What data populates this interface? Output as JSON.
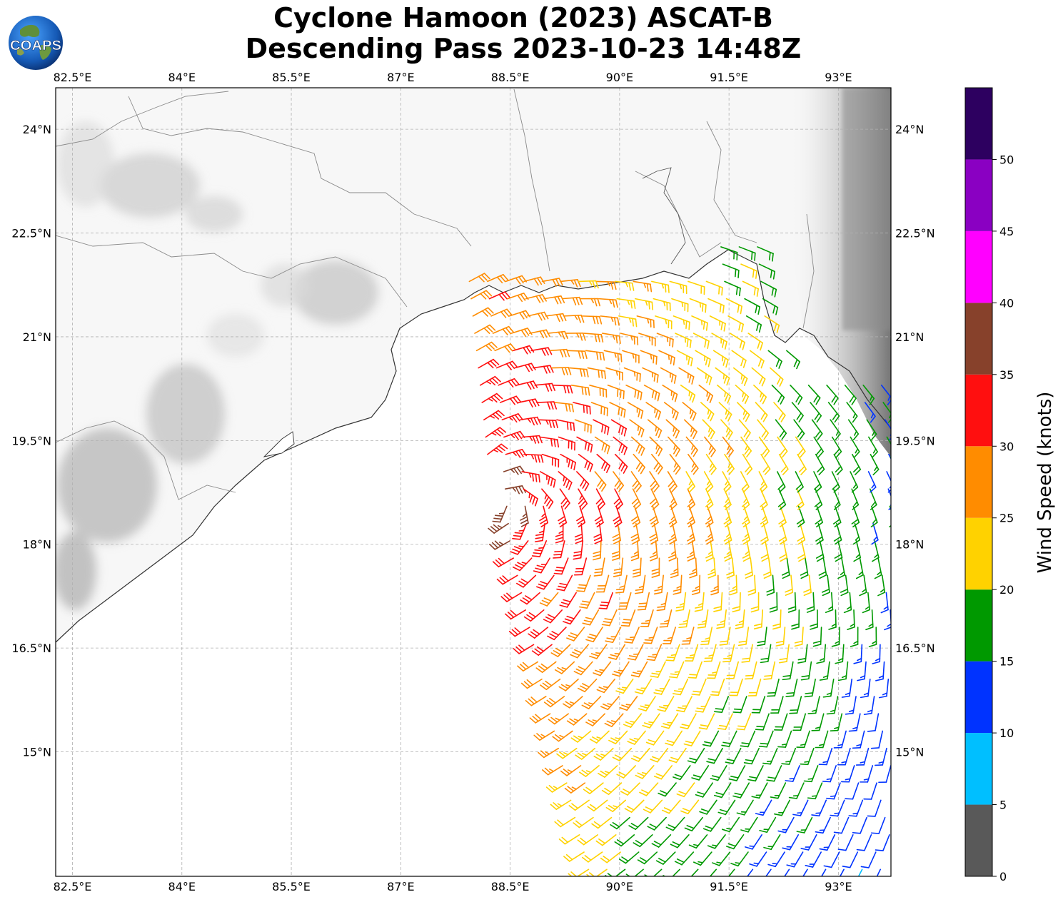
{
  "title": {
    "line1": "Cyclone Hamoon (2023) ASCAT-B",
    "line2": "Descending Pass 2023-10-23 14:48Z"
  },
  "logo": {
    "text": "COAPS",
    "icon": "globe-icon"
  },
  "map": {
    "lon_range": [
      82.27,
      93.72
    ],
    "lat_range": [
      13.2,
      24.6
    ],
    "lon_ticks": [
      "82.5°E",
      "84°E",
      "85.5°E",
      "87°E",
      "88.5°E",
      "90°E",
      "91.5°E",
      "93°E"
    ],
    "lon_tick_values": [
      82.5,
      84,
      85.5,
      87,
      88.5,
      90,
      91.5,
      93
    ],
    "lat_ticks": [
      "24°N",
      "22.5°N",
      "21°N",
      "19.5°N",
      "18°N",
      "16.5°N",
      "15°N"
    ],
    "lat_tick_values": [
      24,
      22.5,
      21,
      19.5,
      18,
      16.5,
      15
    ],
    "gridlines": true,
    "ocean_color": "#ffffff",
    "land_shading": "grayscale-topography"
  },
  "colorbar": {
    "label": "Wind Speed (knots)",
    "ticks": [
      "0",
      "5",
      "10",
      "15",
      "20",
      "25",
      "30",
      "35",
      "40",
      "45",
      "50"
    ],
    "tick_values": [
      0,
      5,
      10,
      15,
      20,
      25,
      30,
      35,
      40,
      45,
      50
    ],
    "bins": [
      {
        "min": 0,
        "max": 5,
        "color": "#595959"
      },
      {
        "min": 5,
        "max": 10,
        "color": "#00bfff"
      },
      {
        "min": 10,
        "max": 15,
        "color": "#0033ff"
      },
      {
        "min": 15,
        "max": 20,
        "color": "#009900"
      },
      {
        "min": 20,
        "max": 25,
        "color": "#ffd200"
      },
      {
        "min": 25,
        "max": 30,
        "color": "#ff8c00"
      },
      {
        "min": 30,
        "max": 35,
        "color": "#ff0f0f"
      },
      {
        "min": 35,
        "max": 40,
        "color": "#87412b"
      },
      {
        "min": 40,
        "max": 45,
        "color": "#ff00ff"
      },
      {
        "min": 45,
        "max": 50,
        "color": "#8a00c2"
      },
      {
        "min": 50,
        "max": 55,
        "color": "#2d0060"
      }
    ]
  },
  "wind_field": {
    "instrument": "ASCAT-B",
    "swath_west_edge": [
      [
        88.4,
        19.2
      ],
      [
        88.5,
        18.0
      ],
      [
        88.9,
        16.2
      ],
      [
        89.4,
        14.0
      ],
      [
        89.6,
        13.2
      ]
    ],
    "swath_east_edge": [
      [
        93.72,
        22.6
      ],
      [
        93.72,
        13.2
      ]
    ],
    "grid_spacing_deg": 0.25,
    "circulation_center": [
      88.4,
      18.6
    ],
    "max_wind_knots": 37
  }
}
